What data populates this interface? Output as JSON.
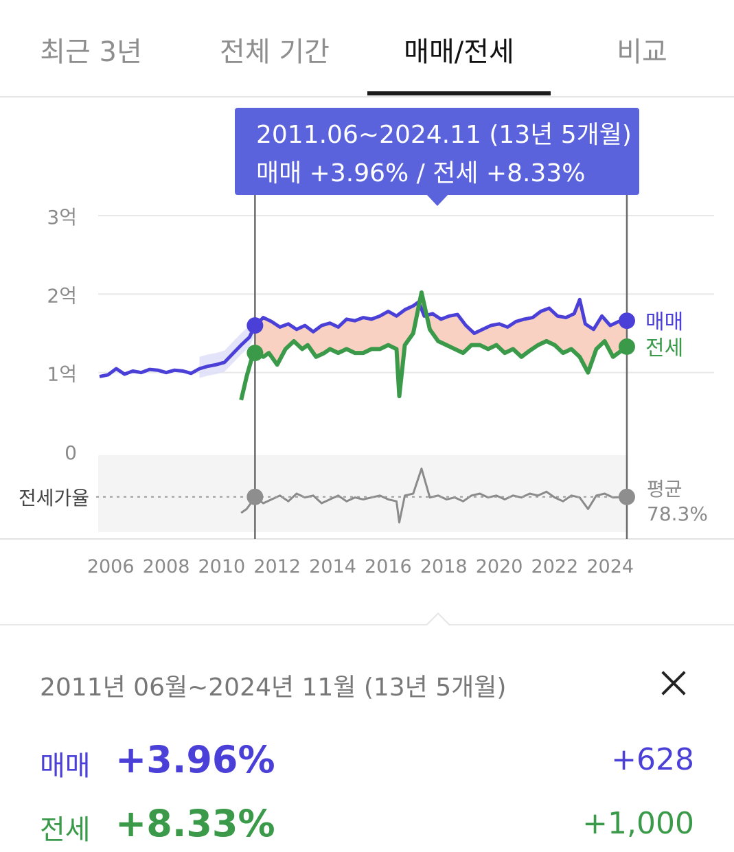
{
  "tabs": [
    {
      "label": "최근 3년",
      "active": false
    },
    {
      "label": "전체 기간",
      "active": false
    },
    {
      "label": "매매/전세",
      "active": true
    },
    {
      "label": "비교",
      "active": false
    }
  ],
  "tooltip": {
    "range": "2011.06~2024.11 (13년 5개월)",
    "detail": "매매 +3.96%  /  전세 +8.33%"
  },
  "colors": {
    "sale": "#4a3fd6",
    "jeonse": "#3a9a4a",
    "gap_fill": "#f7c9b8",
    "ratio": "#8a8a8a",
    "tooltip_bg": "#5b63dc"
  },
  "chart_data": {
    "type": "line",
    "y_ticks": [
      "3억",
      "2억",
      "1억",
      "0"
    ],
    "ylim": [
      0,
      3
    ],
    "x_ticks": [
      "2006",
      "2008",
      "2010",
      "2012",
      "2014",
      "2016",
      "2018",
      "2020",
      "2022",
      "2024"
    ],
    "xlim": [
      2005.85,
      2024.95
    ],
    "selection": {
      "start": 2011.5,
      "end": 2024.9
    },
    "series": [
      {
        "name": "매매",
        "label": "매매",
        "x": [
          2005.9,
          2006.2,
          2006.5,
          2006.8,
          2007.1,
          2007.4,
          2007.7,
          2008.0,
          2008.3,
          2008.6,
          2008.9,
          2009.2,
          2009.5,
          2009.8,
          2010.1,
          2010.4,
          2010.7,
          2011.0,
          2011.3,
          2011.5,
          2011.8,
          2012.1,
          2012.4,
          2012.7,
          2013.0,
          2013.3,
          2013.6,
          2013.9,
          2014.2,
          2014.5,
          2014.8,
          2015.1,
          2015.4,
          2015.7,
          2016.0,
          2016.3,
          2016.6,
          2016.9,
          2017.2,
          2017.4,
          2017.6,
          2017.9,
          2018.2,
          2018.5,
          2018.8,
          2019.1,
          2019.4,
          2019.7,
          2020.0,
          2020.3,
          2020.6,
          2020.9,
          2021.2,
          2021.5,
          2021.8,
          2022.1,
          2022.4,
          2022.7,
          2023.0,
          2023.2,
          2023.4,
          2023.7,
          2024.0,
          2024.3,
          2024.6,
          2024.9
        ],
        "values": [
          0.95,
          0.97,
          1.05,
          0.98,
          1.02,
          1.0,
          1.04,
          1.03,
          1.0,
          1.03,
          1.02,
          0.99,
          1.05,
          1.08,
          1.1,
          1.13,
          1.24,
          1.35,
          1.45,
          1.6,
          1.7,
          1.65,
          1.58,
          1.62,
          1.55,
          1.6,
          1.52,
          1.6,
          1.63,
          1.58,
          1.68,
          1.66,
          1.7,
          1.68,
          1.72,
          1.78,
          1.72,
          1.8,
          1.85,
          1.9,
          1.72,
          1.75,
          1.68,
          1.72,
          1.74,
          1.6,
          1.5,
          1.55,
          1.6,
          1.62,
          1.58,
          1.65,
          1.68,
          1.7,
          1.78,
          1.82,
          1.72,
          1.7,
          1.75,
          1.93,
          1.62,
          1.55,
          1.72,
          1.6,
          1.65,
          1.66
        ]
      },
      {
        "name": "전세",
        "label": "전세",
        "x": [
          2011.0,
          2011.2,
          2011.4,
          2011.5,
          2011.8,
          2012.0,
          2012.3,
          2012.6,
          2012.9,
          2013.2,
          2013.4,
          2013.7,
          2014.0,
          2014.2,
          2014.5,
          2014.8,
          2015.1,
          2015.4,
          2015.7,
          2016.0,
          2016.3,
          2016.6,
          2016.7,
          2016.9,
          2017.2,
          2017.5,
          2017.8,
          2018.1,
          2018.4,
          2018.7,
          2019.0,
          2019.3,
          2019.6,
          2019.9,
          2020.2,
          2020.5,
          2020.8,
          2021.1,
          2021.4,
          2021.7,
          2022.0,
          2022.3,
          2022.6,
          2022.9,
          2023.2,
          2023.5,
          2023.8,
          2024.1,
          2024.4,
          2024.9
        ],
        "values": [
          0.65,
          0.95,
          1.2,
          1.25,
          1.2,
          1.25,
          1.1,
          1.3,
          1.4,
          1.3,
          1.35,
          1.2,
          1.25,
          1.3,
          1.25,
          1.3,
          1.25,
          1.25,
          1.3,
          1.3,
          1.35,
          1.3,
          0.7,
          1.35,
          1.5,
          2.02,
          1.55,
          1.4,
          1.35,
          1.3,
          1.25,
          1.35,
          1.35,
          1.3,
          1.35,
          1.25,
          1.3,
          1.2,
          1.28,
          1.35,
          1.4,
          1.35,
          1.25,
          1.3,
          1.2,
          1.0,
          1.3,
          1.4,
          1.2,
          1.33
        ]
      },
      {
        "name": "전세가율",
        "label": "전세가율",
        "x": [
          2011.0,
          2011.2,
          2011.5,
          2011.8,
          2012.1,
          2012.4,
          2012.7,
          2013.0,
          2013.3,
          2013.6,
          2013.9,
          2014.2,
          2014.5,
          2014.8,
          2015.1,
          2015.4,
          2015.7,
          2016.0,
          2016.3,
          2016.6,
          2016.7,
          2016.9,
          2017.2,
          2017.5,
          2017.8,
          2018.1,
          2018.4,
          2018.7,
          2019.0,
          2019.3,
          2019.6,
          2019.9,
          2020.2,
          2020.5,
          2020.8,
          2021.1,
          2021.4,
          2021.7,
          2022.0,
          2022.3,
          2022.6,
          2022.9,
          2023.2,
          2023.5,
          2023.8,
          2024.1,
          2024.4,
          2024.9
        ],
        "values": [
          70,
          72,
          78,
          75,
          77,
          79,
          76,
          80,
          78,
          79,
          75,
          77,
          79,
          76,
          78,
          77,
          78,
          79,
          77,
          76,
          65,
          79,
          80,
          93,
          78,
          79,
          77,
          78,
          76,
          79,
          80,
          78,
          79,
          77,
          79,
          78,
          80,
          79,
          81,
          78,
          76,
          79,
          78,
          72,
          79,
          80,
          78,
          78.3
        ],
        "ylim": [
          60,
          100
        ]
      }
    ],
    "ratio_label": "전세가율",
    "ratio_avg_label": "평균",
    "ratio_avg_value": "78.3%"
  },
  "summary": {
    "range": "2011년 06월~2024년 11월 (13년 5개월)",
    "sale": {
      "label": "매매",
      "pct": "+3.96%",
      "amount": "+628"
    },
    "jeonse": {
      "label": "전세",
      "pct": "+8.33%",
      "amount": "+1,000"
    }
  }
}
